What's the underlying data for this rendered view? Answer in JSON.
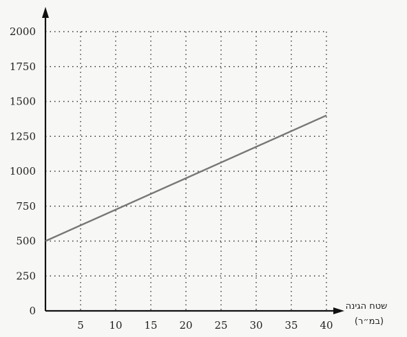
{
  "chart_data": {
    "type": "line",
    "title": "",
    "xlabel": "שטח הגינה",
    "xlabel_unit": "(במ״ר)",
    "ylabel": "",
    "xlim": [
      0,
      40
    ],
    "ylim": [
      0,
      2000
    ],
    "x_ticks": [
      5,
      10,
      15,
      20,
      25,
      30,
      35,
      40
    ],
    "y_ticks": [
      0,
      250,
      500,
      750,
      1000,
      1250,
      1500,
      1750,
      2000
    ],
    "x_tick_labels": [
      "5",
      "10",
      "15",
      "20",
      "25",
      "30",
      "35",
      "40"
    ],
    "y_tick_labels": [
      "0",
      "250",
      "500",
      "750",
      "1000",
      "1250",
      "1500",
      "1750",
      "2000"
    ],
    "grid": true,
    "grid_style": "dotted",
    "series": [
      {
        "x": [
          0,
          40
        ],
        "y": [
          500,
          1400
        ]
      }
    ],
    "colors": {
      "line": "#777777",
      "axis": "#111111",
      "grid": "#333333"
    }
  }
}
